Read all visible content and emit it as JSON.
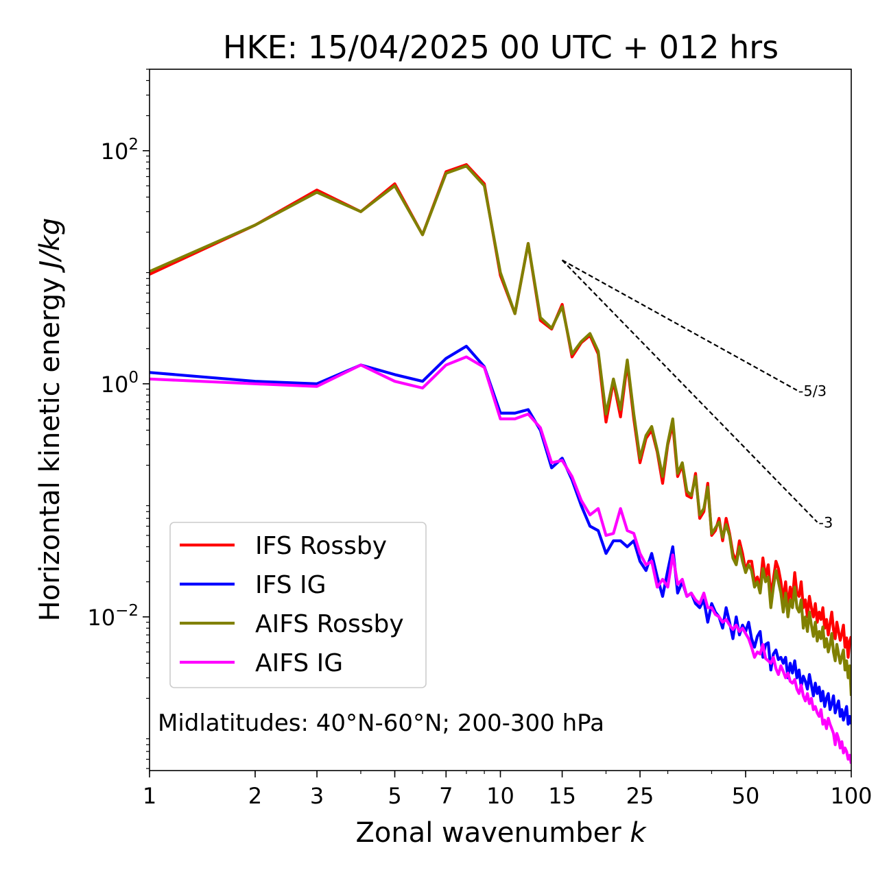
{
  "chart_data": {
    "type": "line",
    "title": "HKE: 15/04/2025 00 UTC + 012 hrs",
    "xlabel": "Zonal wavenumber",
    "xlabel_symbol": "k",
    "ylabel": "Horizontal kinetic energy",
    "ylabel_units": "J/kg",
    "xscale": "log",
    "yscale": "log",
    "xlim": [
      1,
      100
    ],
    "ylim": [
      0.00048,
      500
    ],
    "x_ticks": [
      {
        "value": 1,
        "label": "1"
      },
      {
        "value": 2,
        "label": "2"
      },
      {
        "value": 3,
        "label": "3"
      },
      {
        "value": 5,
        "label": "5"
      },
      {
        "value": 7,
        "label": "7"
      },
      {
        "value": 10,
        "label": "10"
      },
      {
        "value": 15,
        "label": "15"
      },
      {
        "value": 25,
        "label": "25"
      },
      {
        "value": 50,
        "label": "50"
      },
      {
        "value": 100,
        "label": "100"
      }
    ],
    "y_ticks": [
      {
        "value": 0.01,
        "base": "10",
        "exp": "−2"
      },
      {
        "value": 1,
        "base": "10",
        "exp": "0"
      },
      {
        "value": 100,
        "base": "10",
        "exp": "2"
      }
    ],
    "legend_position": "lower-left",
    "annotation": "Midlatitudes: 40°N-60°N; 200-300 hPa",
    "reference_slopes": [
      {
        "label": "-5/3",
        "x": [
          15,
          70
        ],
        "y": [
          11.5,
          0.88
        ]
      },
      {
        "label": "-3",
        "x": [
          15,
          80
        ],
        "y": [
          11.5,
          0.065
        ]
      }
    ],
    "series": [
      {
        "name": "IFS Rossby",
        "color": "#ff0000",
        "legend": true,
        "x": [
          1,
          2,
          3,
          4,
          5,
          6,
          7,
          8,
          9,
          10,
          11,
          12,
          13,
          14,
          15,
          16,
          17,
          18,
          19,
          20,
          21,
          22,
          23,
          24,
          25,
          26,
          27,
          28,
          29,
          30,
          31,
          32,
          33,
          34,
          35,
          36,
          37,
          38,
          39,
          40,
          41,
          42,
          43,
          44,
          45,
          46,
          47,
          48,
          49,
          50,
          51,
          52,
          53,
          54,
          55,
          56,
          57,
          58,
          59,
          60,
          61,
          62,
          63,
          64,
          65,
          66,
          67,
          68,
          69,
          70,
          71,
          72,
          73,
          74,
          75,
          76,
          77,
          78,
          79,
          80,
          81,
          82,
          83,
          84,
          85,
          86,
          87,
          88,
          89,
          90,
          91,
          92,
          93,
          94,
          95,
          96,
          97,
          98,
          99,
          100
        ],
        "y": [
          8.7,
          23,
          46,
          30,
          52,
          19,
          66,
          76,
          52,
          8.5,
          4,
          16,
          3.5,
          2.95,
          4.8,
          1.7,
          2.25,
          2.6,
          1.8,
          0.47,
          1.05,
          0.52,
          1.5,
          0.5,
          0.21,
          0.34,
          0.4,
          0.26,
          0.14,
          0.3,
          0.45,
          0.16,
          0.2,
          0.11,
          0.105,
          0.17,
          0.07,
          0.08,
          0.14,
          0.05,
          0.055,
          0.07,
          0.045,
          0.07,
          0.052,
          0.035,
          0.03,
          0.045,
          0.035,
          0.025,
          0.03,
          0.03,
          0.02,
          0.022,
          0.018,
          0.032,
          0.022,
          0.028,
          0.015,
          0.021,
          0.03,
          0.026,
          0.02,
          0.014,
          0.02,
          0.012,
          0.018,
          0.014,
          0.024,
          0.016,
          0.015,
          0.02,
          0.012,
          0.014,
          0.01,
          0.015,
          0.012,
          0.01,
          0.013,
          0.009,
          0.011,
          0.0095,
          0.012,
          0.008,
          0.0095,
          0.007,
          0.0088,
          0.011,
          0.0078,
          0.0065,
          0.009,
          0.0075,
          0.0063,
          0.0072,
          0.0085,
          0.0055,
          0.0066,
          0.0045,
          0.0062,
          0.0068
        ]
      },
      {
        "name": "IFS IG",
        "color": "#0000ff",
        "legend": true,
        "x": [
          1,
          2,
          3,
          4,
          5,
          6,
          7,
          8,
          9,
          10,
          11,
          12,
          13,
          14,
          15,
          16,
          17,
          18,
          19,
          20,
          21,
          22,
          23,
          24,
          25,
          26,
          27,
          28,
          29,
          30,
          31,
          32,
          33,
          34,
          35,
          36,
          37,
          38,
          39,
          40,
          41,
          42,
          43,
          44,
          45,
          46,
          47,
          48,
          49,
          50,
          51,
          52,
          53,
          54,
          55,
          56,
          57,
          58,
          59,
          60,
          61,
          62,
          63,
          64,
          65,
          66,
          67,
          68,
          69,
          70,
          71,
          72,
          73,
          74,
          75,
          76,
          77,
          78,
          79,
          80,
          81,
          82,
          83,
          84,
          85,
          86,
          87,
          88,
          89,
          90,
          91,
          92,
          93,
          94,
          95,
          96,
          97,
          98,
          99,
          100
        ],
        "y": [
          1.25,
          1.05,
          1.0,
          1.45,
          1.2,
          1.05,
          1.65,
          2.1,
          1.4,
          0.56,
          0.56,
          0.6,
          0.4,
          0.19,
          0.23,
          0.15,
          0.09,
          0.06,
          0.055,
          0.035,
          0.045,
          0.045,
          0.04,
          0.045,
          0.03,
          0.025,
          0.035,
          0.022,
          0.015,
          0.025,
          0.04,
          0.016,
          0.02,
          0.015,
          0.016,
          0.013,
          0.012,
          0.014,
          0.009,
          0.013,
          0.011,
          0.01,
          0.008,
          0.012,
          0.009,
          0.0065,
          0.01,
          0.007,
          0.0085,
          0.0075,
          0.009,
          0.0065,
          0.0055,
          0.0068,
          0.0075,
          0.0045,
          0.0058,
          0.006,
          0.0035,
          0.0048,
          0.0052,
          0.0043,
          0.0045,
          0.004,
          0.0045,
          0.003,
          0.004,
          0.0033,
          0.0042,
          0.003,
          0.0035,
          0.0025,
          0.0031,
          0.0028,
          0.0024,
          0.0032,
          0.0026,
          0.0021,
          0.0027,
          0.0022,
          0.0025,
          0.0019,
          0.0023,
          0.0017,
          0.002,
          0.0022,
          0.0016,
          0.0018,
          0.0021,
          0.0015,
          0.0017,
          0.0019,
          0.0014,
          0.0016,
          0.0013,
          0.0015,
          0.0017,
          0.0012,
          0.0014,
          0.0012
        ]
      },
      {
        "name": "AIFS Rossby",
        "color": "#808000",
        "legend": true,
        "x": [
          1,
          2,
          3,
          4,
          5,
          6,
          7,
          8,
          9,
          10,
          11,
          12,
          13,
          14,
          15,
          16,
          17,
          18,
          19,
          20,
          21,
          22,
          23,
          24,
          25,
          26,
          27,
          28,
          29,
          30,
          31,
          32,
          33,
          34,
          35,
          36,
          37,
          38,
          39,
          40,
          41,
          42,
          43,
          44,
          45,
          46,
          47,
          48,
          49,
          50,
          51,
          52,
          53,
          54,
          55,
          56,
          57,
          58,
          59,
          60,
          61,
          62,
          63,
          64,
          65,
          66,
          67,
          68,
          69,
          70,
          71,
          72,
          73,
          74,
          75,
          76,
          77,
          78,
          79,
          80,
          81,
          82,
          83,
          84,
          85,
          86,
          87,
          88,
          89,
          90,
          91,
          92,
          93,
          94,
          95,
          96,
          97,
          98,
          99,
          100
        ],
        "y": [
          9.2,
          23,
          44,
          30,
          50,
          19,
          64,
          74,
          50,
          9,
          4,
          16,
          3.7,
          3.0,
          4.6,
          1.8,
          2.3,
          2.7,
          1.9,
          0.55,
          1.1,
          0.6,
          1.6,
          0.55,
          0.23,
          0.36,
          0.43,
          0.27,
          0.16,
          0.31,
          0.5,
          0.17,
          0.21,
          0.12,
          0.11,
          0.16,
          0.075,
          0.085,
          0.13,
          0.052,
          0.058,
          0.065,
          0.048,
          0.062,
          0.05,
          0.032,
          0.028,
          0.04,
          0.03,
          0.024,
          0.028,
          0.025,
          0.018,
          0.02,
          0.016,
          0.026,
          0.02,
          0.022,
          0.012,
          0.018,
          0.025,
          0.02,
          0.016,
          0.011,
          0.016,
          0.01,
          0.014,
          0.012,
          0.018,
          0.012,
          0.011,
          0.014,
          0.008,
          0.01,
          0.0075,
          0.011,
          0.0085,
          0.0068,
          0.009,
          0.0062,
          0.0075,
          0.0065,
          0.0082,
          0.0055,
          0.0065,
          0.005,
          0.0058,
          0.0072,
          0.005,
          0.0042,
          0.0058,
          0.0048,
          0.004,
          0.0046,
          0.0052,
          0.0035,
          0.0042,
          0.003,
          0.0038,
          0.0021
        ]
      },
      {
        "name": "AIFS IG",
        "color": "#ff00ff",
        "legend": true,
        "x": [
          1,
          2,
          3,
          4,
          5,
          6,
          7,
          8,
          9,
          10,
          11,
          12,
          13,
          14,
          15,
          16,
          17,
          18,
          19,
          20,
          21,
          22,
          23,
          24,
          25,
          26,
          27,
          28,
          29,
          30,
          31,
          32,
          33,
          34,
          35,
          36,
          37,
          38,
          39,
          40,
          41,
          42,
          43,
          44,
          45,
          46,
          47,
          48,
          49,
          50,
          51,
          52,
          53,
          54,
          55,
          56,
          57,
          58,
          59,
          60,
          61,
          62,
          63,
          64,
          65,
          66,
          67,
          68,
          69,
          70,
          71,
          72,
          73,
          74,
          75,
          76,
          77,
          78,
          79,
          80,
          81,
          82,
          83,
          84,
          85,
          86,
          87,
          88,
          89,
          90,
          91,
          92,
          93,
          94,
          95,
          96,
          97,
          98,
          99,
          100
        ],
        "y": [
          1.1,
          1.0,
          0.95,
          1.45,
          1.05,
          0.92,
          1.45,
          1.7,
          1.38,
          0.5,
          0.5,
          0.55,
          0.42,
          0.21,
          0.22,
          0.16,
          0.1,
          0.075,
          0.085,
          0.05,
          0.052,
          0.085,
          0.055,
          0.052,
          0.035,
          0.028,
          0.03,
          0.018,
          0.021,
          0.018,
          0.034,
          0.019,
          0.021,
          0.015,
          0.016,
          0.014,
          0.013,
          0.016,
          0.012,
          0.012,
          0.0105,
          0.01,
          0.009,
          0.0095,
          0.0085,
          0.0078,
          0.0085,
          0.0075,
          0.008,
          0.0072,
          0.0065,
          0.0055,
          0.0045,
          0.005,
          0.0048,
          0.0058,
          0.0044,
          0.0042,
          0.004,
          0.0045,
          0.0036,
          0.0032,
          0.0038,
          0.0034,
          0.003,
          0.0033,
          0.0028,
          0.0027,
          0.0029,
          0.0024,
          0.0022,
          0.0026,
          0.0021,
          0.0019,
          0.0022,
          0.0018,
          0.002,
          0.0016,
          0.0017,
          0.0015,
          0.0014,
          0.0016,
          0.0012,
          0.0013,
          0.0011,
          0.00135,
          0.0012,
          0.0011,
          0.001,
          0.0008,
          0.001,
          0.0009,
          0.00075,
          0.00085,
          0.00068,
          0.00075,
          0.0007,
          0.0006,
          0.00065,
          0.00055
        ]
      }
    ]
  }
}
